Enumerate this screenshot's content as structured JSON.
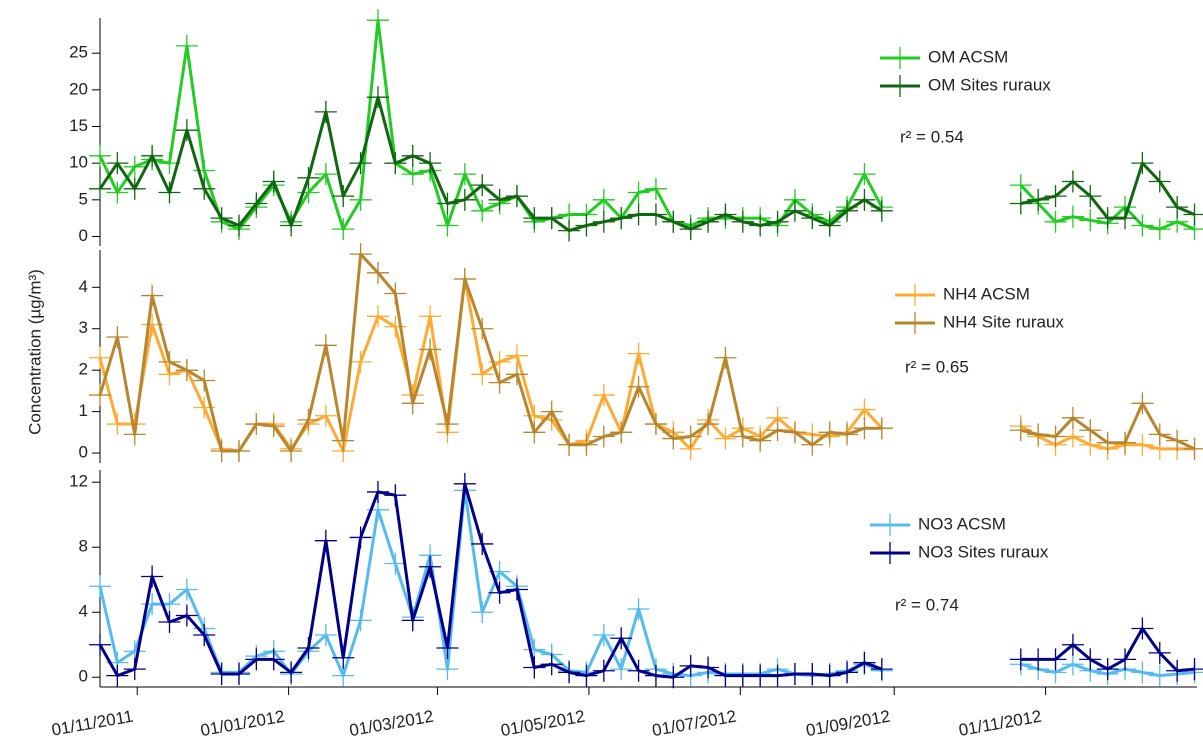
{
  "chart_data": {
    "type": "line",
    "y_label": "Concentration (µg/m³)",
    "x": [
      "2011-10-17",
      "2011-10-24",
      "2011-10-31",
      "2011-11-07",
      "2011-11-14",
      "2011-11-21",
      "2011-11-28",
      "2011-12-05",
      "2011-12-12",
      "2011-12-19",
      "2011-12-26",
      "2012-01-02",
      "2012-01-09",
      "2012-01-16",
      "2012-01-23",
      "2012-01-30",
      "2012-02-06",
      "2012-02-13",
      "2012-02-20",
      "2012-02-27",
      "2012-03-05",
      "2012-03-12",
      "2012-03-19",
      "2012-03-26",
      "2012-04-02",
      "2012-04-09",
      "2012-04-16",
      "2012-04-23",
      "2012-04-30",
      "2012-05-07",
      "2012-05-14",
      "2012-05-21",
      "2012-05-28",
      "2012-06-04",
      "2012-06-11",
      "2012-06-18",
      "2012-06-25",
      "2012-07-02",
      "2012-07-09",
      "2012-07-16",
      "2012-07-23",
      "2012-07-30",
      "2012-08-06",
      "2012-08-13",
      "2012-08-20",
      "2012-08-27",
      "2012-09-03",
      "2012-09-10",
      "2012-09-17",
      "2012-09-24",
      "2012-10-01",
      "2012-10-08",
      "2012-10-15",
      "2012-10-22",
      "2012-10-29",
      "2012-11-05",
      "2012-11-12",
      "2012-11-19",
      "2012-11-26",
      "2012-12-03",
      "2012-12-10",
      "2012-12-17",
      "2012-12-24",
      "2012-12-31"
    ],
    "xlim": [
      "2011-10-17",
      "2013-01-01"
    ],
    "xticks": [
      {
        "value": "2011-11-01",
        "label": "01/11/2011"
      },
      {
        "value": "2012-01-01",
        "label": "01/01/2012"
      },
      {
        "value": "2012-03-01",
        "label": "01/03/2012"
      },
      {
        "value": "2012-05-01",
        "label": "01/05/2012"
      },
      {
        "value": "2012-07-01",
        "label": "01/07/2012"
      },
      {
        "value": "2012-09-01",
        "label": "01/09/2012"
      },
      {
        "value": "2012-11-01",
        "label": "01/11/2012"
      }
    ],
    "panels": [
      {
        "ylim": [
          -1.3,
          29.8
        ],
        "yticks": [
          0,
          5,
          10,
          15,
          20,
          25
        ],
        "annotation": "r² = 0.54",
        "series": [
          {
            "name": "OM ACSM",
            "color": "#22cc22",
            "values": [
              11,
              6,
              9.5,
              10.5,
              10,
              26,
              9,
              2,
              1,
              4,
              7,
              2,
              6,
              8.5,
              1,
              5,
              29.5,
              10,
              8.5,
              9,
              1.5,
              8.5,
              3.5,
              4.5,
              5.5,
              2,
              2.5,
              3,
              3,
              5,
              2.5,
              6,
              6.5,
              2,
              1.5,
              2.5,
              2.5,
              2.5,
              2.5,
              1.5,
              5,
              3,
              2,
              4,
              8.5,
              4,
              null,
              null,
              null,
              null,
              null,
              null,
              null,
              7,
              4.5,
              2,
              2.7,
              2.2,
              1.8,
              4,
              1.5,
              1,
              2,
              1
            ]
          },
          {
            "name": "OM Sites ruraux",
            "color": "#116611",
            "values": [
              6.5,
              10,
              6.5,
              11,
              6,
              14.5,
              6.5,
              2.5,
              1.5,
              4.5,
              7.5,
              1.5,
              8,
              17,
              5.5,
              10,
              19,
              10,
              11,
              10,
              4.5,
              5,
              7,
              5,
              5.5,
              2.5,
              2.5,
              0.8,
              1.5,
              2,
              2.5,
              3,
              3,
              2,
              1,
              2,
              3,
              2,
              1.5,
              2,
              3.5,
              2.5,
              1.5,
              3.5,
              5,
              3.5,
              null,
              null,
              null,
              null,
              null,
              null,
              null,
              4.5,
              5,
              5.5,
              7.5,
              5.5,
              2.5,
              2.5,
              10,
              7.5,
              4,
              3
            ]
          }
        ]
      },
      {
        "ylim": [
          -0.24,
          4.9
        ],
        "yticks": [
          0,
          1,
          2,
          3,
          4
        ],
        "annotation": "r² = 0.65",
        "series": [
          {
            "name": "NH4 ACSM",
            "color": "#ffaa33",
            "values": [
              2.3,
              0.7,
              0.7,
              3.1,
              1.9,
              2,
              1.1,
              0.1,
              0.05,
              0.7,
              0.7,
              0.1,
              0.7,
              0.9,
              0.05,
              2.2,
              3.3,
              3.05,
              1.4,
              3.3,
              0.5,
              4.2,
              1.9,
              2.2,
              2.35,
              0.9,
              0.8,
              0.2,
              0.3,
              1.4,
              0.5,
              2.4,
              0.7,
              0.5,
              0.1,
              0.8,
              0.35,
              0.6,
              0.4,
              0.85,
              0.5,
              0.45,
              0.4,
              0.5,
              1.05,
              0.6,
              null,
              null,
              null,
              null,
              null,
              null,
              null,
              0.65,
              0.4,
              0.2,
              0.4,
              0.2,
              0.1,
              0.2,
              0.2,
              0.1,
              0.1,
              0.1
            ]
          },
          {
            "name": "NH4 Site ruraux",
            "color": "#b8862e",
            "values": [
              1.4,
              2.8,
              0.45,
              3.8,
              2.2,
              2,
              1.75,
              0.05,
              0.05,
              0.7,
              0.65,
              0.05,
              0.8,
              2.6,
              0.3,
              4.8,
              4.35,
              3.85,
              1.2,
              2.5,
              0.7,
              4.2,
              3,
              1.7,
              1.9,
              0.5,
              1,
              0.2,
              0.2,
              0.4,
              0.5,
              1.6,
              0.7,
              0.35,
              0.4,
              0.7,
              2.3,
              0.4,
              0.3,
              0.55,
              0.5,
              0.2,
              0.5,
              0.45,
              0.6,
              0.6,
              null,
              null,
              null,
              null,
              null,
              null,
              null,
              0.55,
              0.45,
              0.4,
              0.85,
              0.55,
              0.25,
              0.25,
              1.2,
              0.45,
              0.3,
              0.1
            ]
          }
        ]
      },
      {
        "ylim": [
          -0.6,
          12.75
        ],
        "yticks": [
          0,
          4,
          8,
          12
        ],
        "annotation": "r² = 0.74",
        "series": [
          {
            "name": "NO3 ACSM",
            "color": "#55bbee",
            "values": [
              5.6,
              0.9,
              1.6,
              4.5,
              4.5,
              5.4,
              3,
              0.3,
              0.3,
              1.3,
              1.6,
              0.2,
              1.6,
              2.6,
              0.1,
              3.5,
              10.3,
              7,
              3.7,
              7.5,
              0.5,
              11.5,
              4,
              6.5,
              5.6,
              1.7,
              1.4,
              0.4,
              0.3,
              2.6,
              0.5,
              4.2,
              0.5,
              0.2,
              0.1,
              0.3,
              0.2,
              0.2,
              0.2,
              0.5,
              0.2,
              0.1,
              0.2,
              0.4,
              0.8,
              0.4,
              null,
              null,
              null,
              null,
              null,
              null,
              null,
              0.8,
              0.5,
              0.3,
              0.8,
              0.4,
              0.2,
              0.5,
              0.3,
              0.1,
              0.2,
              0.3
            ]
          },
          {
            "name": "NO3 Sites ruraux",
            "color": "#000088",
            "values": [
              2,
              0.1,
              0.5,
              6.2,
              3.4,
              3.8,
              2.6,
              0.2,
              0.2,
              1.1,
              1.1,
              0.3,
              1.8,
              8.4,
              1.2,
              8.6,
              11.4,
              11.2,
              3.5,
              6.8,
              1.8,
              11.9,
              8.2,
              5.2,
              5.4,
              0.6,
              0.8,
              0.3,
              0.1,
              0.4,
              2.4,
              0.4,
              0.1,
              0,
              0.7,
              0.6,
              0.1,
              0.1,
              0.1,
              0.1,
              0.2,
              0.2,
              0.1,
              0.3,
              0.9,
              0.5,
              null,
              null,
              null,
              null,
              null,
              null,
              null,
              1.1,
              1.1,
              1.1,
              2,
              1.1,
              0.5,
              1.1,
              3,
              1.5,
              0.4,
              0.5
            ]
          }
        ]
      }
    ]
  }
}
